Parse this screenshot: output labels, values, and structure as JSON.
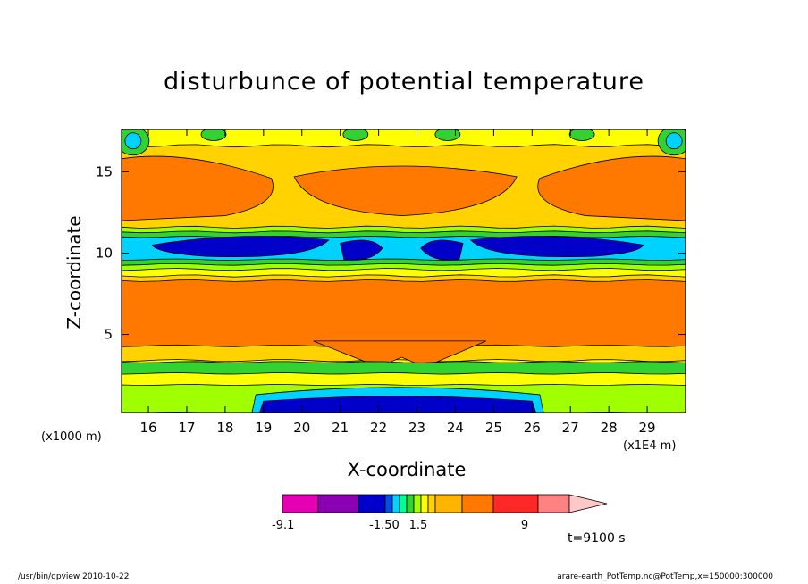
{
  "chart_data": {
    "type": "heatmap",
    "title": "disturbunce of potential temperature",
    "xlabel": "X-coordinate",
    "ylabel": "Z-coordinate",
    "x_unit_label": "(x1000 m)",
    "x_scale_label": "(x1E4 m)",
    "time_label": "t=9100 s",
    "xlim": [
      15.3,
      30.0
    ],
    "ylim": [
      0.2,
      17.6
    ],
    "x_ticks": [
      "16",
      "17",
      "18",
      "19",
      "20",
      "21",
      "22",
      "23",
      "24",
      "25",
      "26",
      "27",
      "28",
      "29"
    ],
    "y_ticks": [
      "5",
      "10",
      "15"
    ],
    "colorbar": {
      "colors": [
        "#e600b4",
        "#8c00b4",
        "#0000c8",
        "#0050e6",
        "#00d2ff",
        "#00ff96",
        "#32d232",
        "#a0ff00",
        "#ffff00",
        "#ffd200",
        "#ffb400",
        "#ff7800",
        "#ff2828",
        "#ff8282",
        "#ffc8c8"
      ],
      "labels": [
        "-9.1",
        "-1.50",
        "1.5",
        "9"
      ]
    },
    "layers": [
      {
        "name": "upper-orange",
        "z": [
          11.3,
          16.2
        ],
        "color": "#ff7800"
      },
      {
        "name": "jet-cyan",
        "z": [
          9.2,
          11.5
        ],
        "color": "#00d2ff"
      },
      {
        "name": "jet-blue",
        "z": [
          9.6,
          10.9
        ],
        "color": "#0000c8"
      },
      {
        "name": "mid-orange",
        "z": [
          4.2,
          8.4
        ],
        "color": "#ff7800"
      },
      {
        "name": "green-band",
        "z": [
          2.6,
          3.2
        ],
        "color": "#32d232"
      },
      {
        "name": "bottom-blue",
        "z": [
          0.2,
          0.9
        ],
        "color": "#0000c8"
      }
    ]
  },
  "footer": {
    "left": "/usr/bin/gpview   2010-10-22",
    "right": "arare-earth_PotTemp.nc@PotTemp,x=150000:300000"
  }
}
